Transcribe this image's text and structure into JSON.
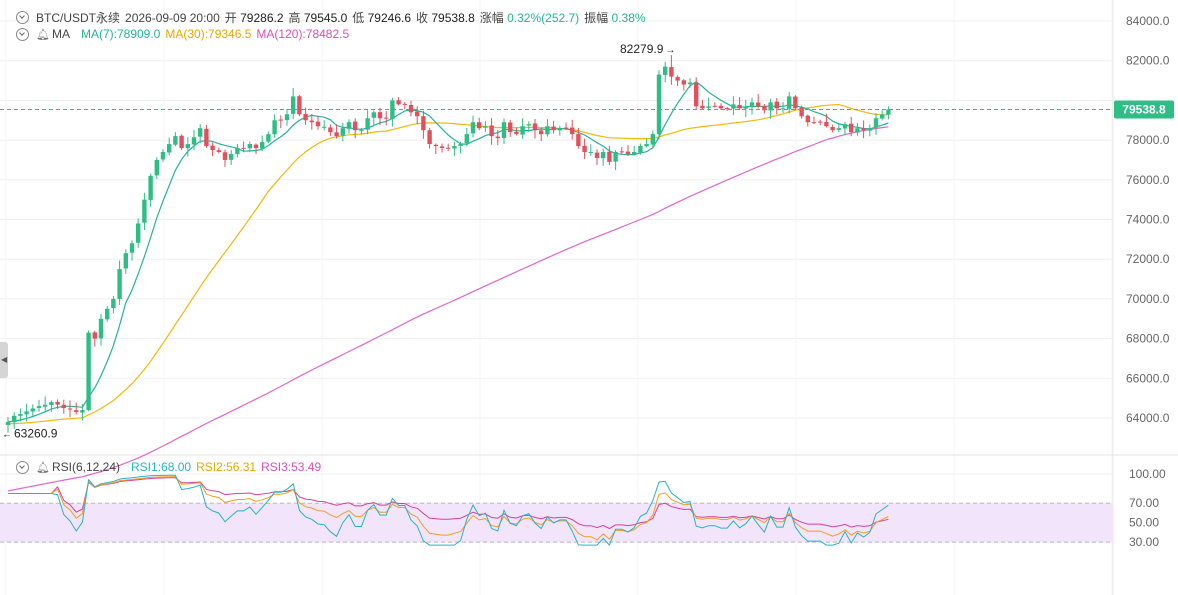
{
  "header": {
    "symbol": "BTC/USDT永续",
    "datetime": "2026-09-09 20:00",
    "open_label": "开",
    "open": "79286.2",
    "high_label": "高",
    "high": "79545.0",
    "low_label": "低",
    "low": "79246.6",
    "close_label": "收",
    "close": "79538.8",
    "change_label": "涨幅",
    "change": "0.32%(252.7)",
    "amp_label": "振幅",
    "amp": "0.38%"
  },
  "ma_legend": {
    "title": "MA",
    "ma7": "MA(7):78909.0",
    "ma30": "MA(30):79346.5",
    "ma120": "MA(120):78482.5"
  },
  "rsi_legend": {
    "title": "RSI(6,12,24)",
    "rsi1": "RSI1:68.00",
    "rsi2": "RSI2:56.31",
    "rsi3": "RSI3:53.49"
  },
  "colors": {
    "up": "#2ebd85",
    "down": "#e0505d",
    "ma7": "#26b39a",
    "ma30": "#f0b90b",
    "ma120": "#e066cc",
    "rsi1": "#26b3c7",
    "rsi2": "#f0a020",
    "rsi3": "#d9409b",
    "rsi_band": "#f2e4fb",
    "grid": "#efefef",
    "last_price_bg": "#2ebd85"
  },
  "icons": [
    "collapse-toggle-icon",
    "bell-icon",
    "left-arrow-icon"
  ],
  "chart_data": [
    {
      "type": "candlestick",
      "title": "BTC/USDT永续",
      "ylim": [
        62500,
        85000
      ],
      "y_ticks": [
        "84000.0",
        "82000.0",
        "80000.0",
        "78000.0",
        "76000.0",
        "74000.0",
        "72000.0",
        "70000.0",
        "68000.0",
        "66000.0",
        "64000.0"
      ],
      "annotations": {
        "max_label": "82279.9",
        "max_value": 82279.9,
        "max_index": 107,
        "min_label": "63260.9",
        "min_value": 63260.9,
        "min_index": 0
      },
      "last_price": {
        "label": "79538.8",
        "value": 79538.8
      },
      "current_price_line": 79538.8,
      "close_anchors": [
        [
          0,
          63800
        ],
        [
          2,
          64200
        ],
        [
          5,
          64600
        ],
        [
          7,
          64800
        ],
        [
          9,
          64500
        ],
        [
          11,
          64300
        ],
        [
          12,
          64400
        ],
        [
          13,
          68300
        ],
        [
          14,
          68000
        ],
        [
          15,
          69000
        ],
        [
          16,
          69500
        ],
        [
          17,
          70000
        ],
        [
          18,
          71500
        ],
        [
          19,
          72300
        ],
        [
          20,
          72800
        ],
        [
          21,
          73800
        ],
        [
          22,
          75000
        ],
        [
          23,
          76200
        ],
        [
          24,
          77000
        ],
        [
          25,
          77400
        ],
        [
          26,
          77800
        ],
        [
          27,
          78200
        ],
        [
          28,
          77600
        ],
        [
          29,
          77800
        ],
        [
          31,
          78600
        ],
        [
          32,
          77700
        ],
        [
          33,
          77500
        ],
        [
          34,
          77400
        ],
        [
          35,
          77000
        ],
        [
          36,
          77300
        ],
        [
          37,
          77600
        ],
        [
          38,
          77600
        ],
        [
          39,
          77800
        ],
        [
          40,
          77600
        ],
        [
          41,
          77900
        ],
        [
          42,
          78300
        ],
        [
          43,
          79000
        ],
        [
          44,
          79000
        ],
        [
          45,
          79300
        ],
        [
          46,
          80200
        ],
        [
          47,
          79300
        ],
        [
          48,
          79000
        ],
        [
          49,
          78900
        ],
        [
          50,
          78700
        ],
        [
          52,
          78400
        ],
        [
          53,
          78200
        ],
        [
          54,
          78600
        ],
        [
          55,
          78900
        ],
        [
          56,
          78500
        ],
        [
          57,
          78500
        ],
        [
          58,
          79100
        ],
        [
          59,
          79400
        ],
        [
          60,
          79100
        ],
        [
          61,
          79100
        ],
        [
          62,
          80000
        ],
        [
          63,
          79800
        ],
        [
          64,
          79800
        ],
        [
          65,
          79400
        ],
        [
          66,
          79200
        ],
        [
          67,
          78500
        ],
        [
          68,
          77800
        ],
        [
          69,
          77700
        ],
        [
          70,
          77600
        ],
        [
          71,
          77600
        ],
        [
          72,
          77700
        ],
        [
          73,
          77800
        ],
        [
          74,
          78300
        ],
        [
          75,
          78900
        ],
        [
          76,
          78600
        ],
        [
          77,
          78700
        ],
        [
          78,
          78200
        ],
        [
          79,
          78100
        ],
        [
          80,
          78900
        ],
        [
          81,
          78400
        ],
        [
          82,
          78300
        ],
        [
          83,
          78700
        ],
        [
          84,
          78800
        ],
        [
          85,
          78500
        ],
        [
          86,
          78300
        ],
        [
          87,
          78700
        ],
        [
          88,
          78500
        ],
        [
          89,
          78600
        ],
        [
          90,
          78600
        ],
        [
          91,
          78300
        ],
        [
          92,
          77700
        ],
        [
          93,
          77400
        ],
        [
          94,
          77400
        ],
        [
          95,
          77100
        ],
        [
          96,
          77400
        ],
        [
          97,
          76900
        ],
        [
          98,
          77400
        ],
        [
          99,
          77400
        ],
        [
          100,
          77300
        ],
        [
          101,
          77400
        ],
        [
          102,
          77700
        ],
        [
          103,
          77800
        ],
        [
          104,
          78300
        ],
        [
          105,
          81300
        ],
        [
          106,
          81700
        ],
        [
          107,
          81200
        ],
        [
          108,
          81000
        ],
        [
          109,
          80800
        ],
        [
          110,
          80900
        ],
        [
          111,
          79700
        ],
        [
          112,
          79600
        ],
        [
          113,
          79700
        ],
        [
          114,
          79700
        ],
        [
          115,
          79600
        ],
        [
          116,
          79600
        ],
        [
          117,
          79800
        ],
        [
          118,
          79600
        ],
        [
          119,
          79700
        ],
        [
          120,
          79900
        ],
        [
          121,
          79700
        ],
        [
          122,
          79500
        ],
        [
          123,
          79900
        ],
        [
          124,
          79600
        ],
        [
          125,
          79600
        ],
        [
          126,
          80200
        ],
        [
          127,
          79600
        ],
        [
          128,
          79200
        ],
        [
          129,
          78900
        ],
        [
          130,
          78900
        ],
        [
          131,
          78900
        ],
        [
          132,
          78700
        ],
        [
          133,
          78500
        ],
        [
          134,
          78600
        ],
        [
          135,
          78800
        ],
        [
          136,
          78400
        ],
        [
          137,
          78600
        ],
        [
          138,
          78500
        ],
        [
          139,
          78600
        ],
        [
          140,
          79100
        ],
        [
          141,
          79300
        ],
        [
          142,
          79538.8
        ]
      ],
      "series": [
        {
          "name": "MA(7)",
          "last": 78909.0
        },
        {
          "name": "MA(30)",
          "last": 79346.5
        },
        {
          "name": "MA(120)",
          "last": 78482.5
        }
      ]
    },
    {
      "type": "line",
      "title": "RSI(6,12,24)",
      "ylim": [
        25,
        105
      ],
      "y_ticks": [
        "100.00",
        "70.00",
        "50.00",
        "30.00"
      ],
      "band": [
        30,
        70
      ],
      "series": [
        {
          "name": "RSI1",
          "last": 68.0
        },
        {
          "name": "RSI2",
          "last": 56.31
        },
        {
          "name": "RSI3",
          "last": 53.49
        }
      ]
    }
  ]
}
